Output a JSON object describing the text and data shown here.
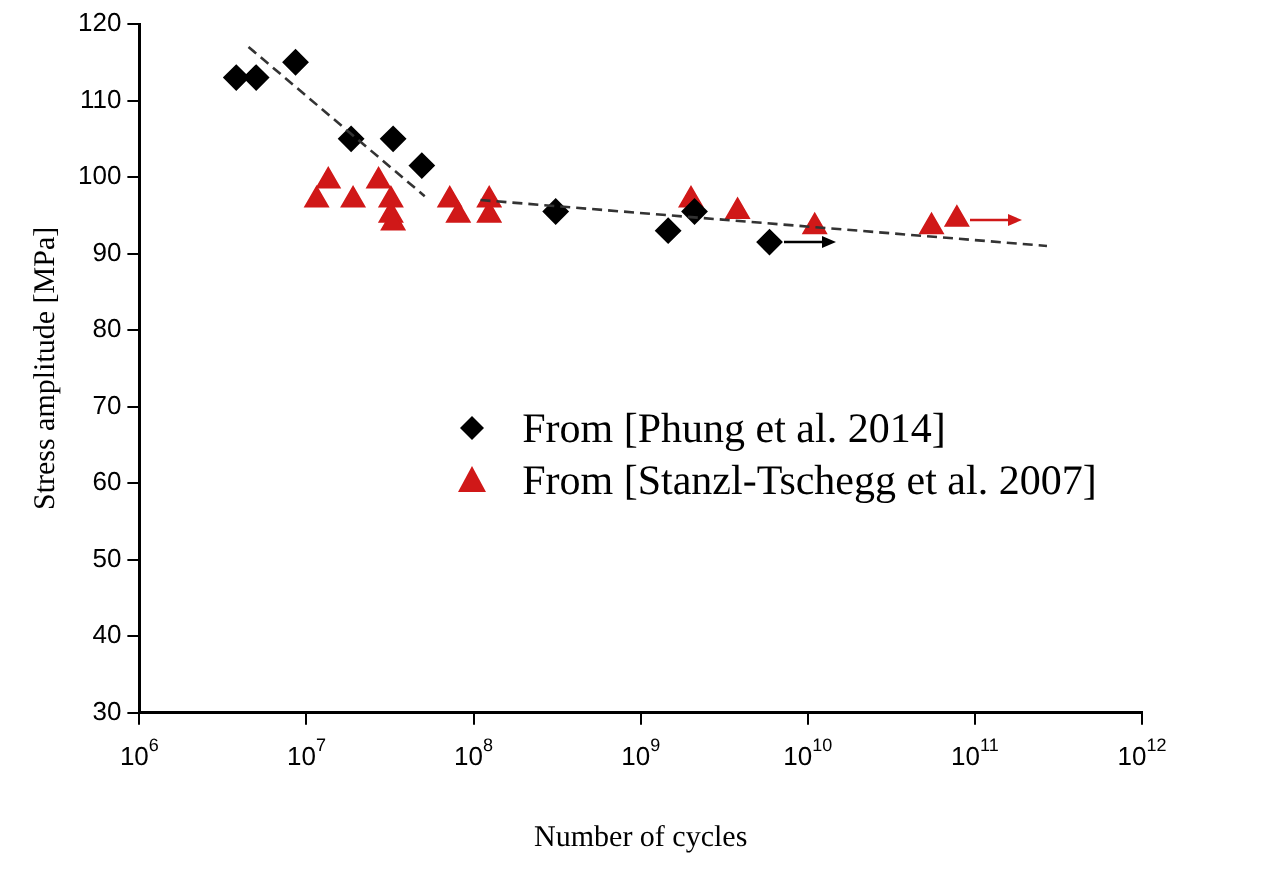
{
  "chart_data": {
    "type": "scatter",
    "xlabel": "Number of cycles",
    "ylabel": "Stress amplitude [MPa]",
    "log": "x",
    "xlim": [
      1000000,
      1000000000000
    ],
    "ylim": [
      30,
      120
    ],
    "xticks": [
      {
        "value": 1000000,
        "label": "10$^{6}$"
      },
      {
        "value": 10000000,
        "label": "10$^{7}$"
      },
      {
        "value": 100000000,
        "label": "10$^{8}$"
      },
      {
        "value": 1000000000,
        "label": "10$^{9}$"
      },
      {
        "value": 10000000000,
        "label": "10$^{10}$"
      },
      {
        "value": 100000000000,
        "label": "10$^{11}$"
      },
      {
        "value": 1000000000000,
        "label": "10$^{12}$"
      }
    ],
    "yticks": [
      30,
      40,
      50,
      60,
      70,
      80,
      90,
      100,
      110,
      120
    ],
    "grid": false,
    "legend": "right",
    "series": [
      {
        "type": "line",
        "color": "#333333",
        "line_style": "dashed",
        "marker": "none",
        "x": [
          4500000,
          51000000
        ],
        "values": [
          117,
          97.5
        ]
      },
      {
        "type": "line",
        "color": "#333333",
        "line_style": "dashed",
        "marker": "none",
        "x": [
          110000000,
          270000000000
        ],
        "values": [
          97,
          91
        ]
      },
      {
        "name": "From [Phung et al. 2014]",
        "color": "#000000",
        "marker": "diamond",
        "x": [
          3800000,
          5000000,
          8600000,
          18500000,
          33000000,
          49000000,
          310000000,
          1460000000,
          2100000000,
          5900000000
        ],
        "values": [
          113,
          113,
          115,
          105,
          105,
          101.5,
          95.5,
          93,
          95.5,
          91.5
        ]
      },
      {
        "name": "From [Stanzl-Tschegg et al. 2007]",
        "color": "#d01818",
        "marker": "triangle",
        "x": [
          11500000,
          13500000,
          19000000,
          27000000,
          32000000,
          32000000,
          33000000,
          72000000,
          81000000,
          124000000,
          124000000,
          2000000000,
          3800000000,
          11000000000,
          55000000000,
          78000000000
        ],
        "values": [
          97,
          99.5,
          97,
          99.5,
          97,
          95,
          94,
          97,
          95,
          97,
          95,
          97,
          95.5,
          93.5,
          93.5,
          94.5
        ]
      }
    ]
  }
}
